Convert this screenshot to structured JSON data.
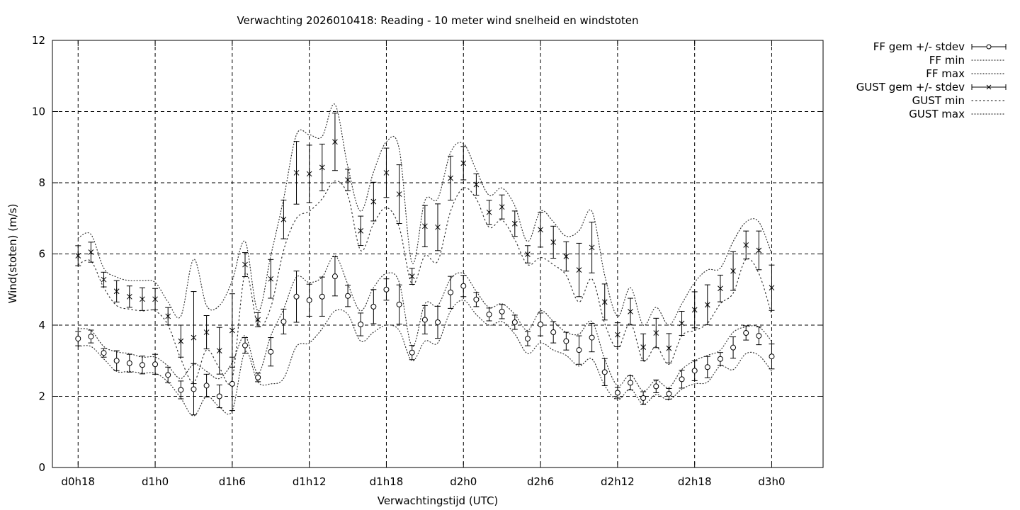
{
  "chart_data": {
    "type": "line",
    "title": "Verwachting 2026010418: Reading - 10 meter wind snelheid en windstoten",
    "xlabel": "Verwachtingstijd (UTC)",
    "ylabel": "Wind(stoten) (m/s)",
    "ylim": [
      0,
      12
    ],
    "xlim_hours": [
      16,
      76
    ],
    "grid": true,
    "legend_position": "outside-top-right",
    "x_ticks": [
      {
        "label": "d0h18",
        "h": 18
      },
      {
        "label": "d1h0",
        "h": 24
      },
      {
        "label": "d1h6",
        "h": 30
      },
      {
        "label": "d1h12",
        "h": 36
      },
      {
        "label": "d1h18",
        "h": 42
      },
      {
        "label": "d2h0",
        "h": 48
      },
      {
        "label": "d2h6",
        "h": 54
      },
      {
        "label": "d2h12",
        "h": 60
      },
      {
        "label": "d2h18",
        "h": 66
      },
      {
        "label": "d3h0",
        "h": 72
      }
    ],
    "y_ticks": [
      0,
      2,
      4,
      6,
      8,
      10,
      12
    ],
    "x_hours": [
      18,
      19,
      20,
      21,
      22,
      23,
      24,
      25,
      26,
      27,
      28,
      29,
      30,
      31,
      32,
      33,
      34,
      35,
      36,
      37,
      38,
      39,
      40,
      41,
      42,
      43,
      44,
      45,
      46,
      47,
      48,
      49,
      50,
      51,
      52,
      53,
      54,
      55,
      56,
      57,
      58,
      59,
      60,
      61,
      62,
      63,
      64,
      65,
      66,
      67,
      68,
      69,
      70,
      71,
      72
    ],
    "series": [
      {
        "name": "FF gem +/- stdev",
        "mean": [
          3.62,
          3.68,
          3.22,
          3.0,
          2.93,
          2.88,
          2.9,
          2.6,
          2.18,
          2.2,
          2.3,
          2.0,
          2.35,
          3.43,
          2.53,
          3.25,
          4.1,
          4.8,
          4.7,
          4.8,
          5.37,
          4.82,
          4.02,
          4.52,
          5.0,
          4.58,
          3.23,
          4.15,
          4.08,
          4.92,
          5.1,
          4.72,
          4.3,
          4.38,
          4.08,
          3.62,
          4.02,
          3.8,
          3.55,
          3.3,
          3.65,
          2.68,
          2.1,
          2.38,
          1.95,
          2.28,
          2.07,
          2.48,
          2.72,
          2.82,
          3.05,
          3.37,
          3.78,
          3.7,
          3.12
        ],
        "stdev": [
          0.2,
          0.18,
          0.12,
          0.28,
          0.25,
          0.25,
          0.28,
          0.22,
          0.25,
          0.72,
          0.32,
          0.32,
          0.75,
          0.22,
          0.12,
          0.4,
          0.35,
          0.72,
          0.45,
          0.55,
          0.55,
          0.3,
          0.32,
          0.48,
          0.3,
          0.55,
          0.2,
          0.4,
          0.45,
          0.45,
          0.3,
          0.2,
          0.18,
          0.2,
          0.2,
          0.2,
          0.32,
          0.3,
          0.25,
          0.4,
          0.4,
          0.38,
          0.15,
          0.2,
          0.18,
          0.18,
          0.15,
          0.25,
          0.28,
          0.3,
          0.18,
          0.3,
          0.2,
          0.25,
          0.35
        ]
      },
      {
        "name": "FF min",
        "values": [
          3.4,
          3.4,
          3.05,
          2.7,
          2.7,
          2.65,
          2.65,
          2.4,
          1.95,
          1.45,
          2.0,
          1.7,
          1.6,
          3.25,
          2.4,
          2.35,
          2.5,
          3.4,
          3.5,
          3.9,
          4.4,
          4.3,
          3.55,
          3.8,
          4.0,
          3.85,
          3.0,
          3.55,
          3.5,
          4.4,
          4.7,
          4.3,
          4.0,
          4.1,
          3.75,
          3.2,
          3.5,
          3.3,
          3.15,
          2.85,
          3.05,
          2.3,
          1.9,
          2.2,
          1.78,
          2.05,
          1.9,
          2.2,
          2.35,
          2.4,
          2.85,
          2.75,
          3.2,
          3.15,
          2.7
        ]
      },
      {
        "name": "FF max",
        "values": [
          3.9,
          3.85,
          3.4,
          3.25,
          3.2,
          3.1,
          3.1,
          2.85,
          2.5,
          2.9,
          2.7,
          2.5,
          2.95,
          3.7,
          2.65,
          3.7,
          4.45,
          5.35,
          5.2,
          5.35,
          5.95,
          5.15,
          4.4,
          5.05,
          5.45,
          5.2,
          3.4,
          4.6,
          4.55,
          5.3,
          5.45,
          4.95,
          4.5,
          4.6,
          4.3,
          3.85,
          4.4,
          4.1,
          3.8,
          3.75,
          4.1,
          3.05,
          2.3,
          2.6,
          2.15,
          2.45,
          2.25,
          2.75,
          3.0,
          3.15,
          3.3,
          3.8,
          3.95,
          3.95,
          3.55
        ]
      },
      {
        "name": "GUST gem +/- stdev",
        "mean": [
          5.95,
          6.05,
          5.28,
          4.95,
          4.8,
          4.73,
          4.73,
          4.25,
          3.55,
          3.65,
          3.8,
          3.28,
          3.85,
          5.7,
          4.15,
          5.3,
          6.97,
          8.28,
          8.25,
          8.43,
          9.15,
          8.08,
          6.65,
          7.47,
          8.28,
          7.68,
          5.37,
          6.78,
          6.75,
          8.13,
          8.55,
          7.95,
          7.17,
          7.32,
          6.85,
          5.99,
          6.68,
          6.33,
          5.93,
          5.55,
          6.18,
          4.65,
          3.73,
          4.38,
          3.38,
          3.78,
          3.35,
          4.05,
          4.43,
          4.57,
          5.03,
          5.52,
          6.25,
          6.1,
          5.05
        ]
      },
      {
        "name": "GUST min",
        "values": [
          5.7,
          5.8,
          5.05,
          4.55,
          4.45,
          4.4,
          4.4,
          4.0,
          3.05,
          2.4,
          3.3,
          2.8,
          2.5,
          5.45,
          4.0,
          4.5,
          6.1,
          7.0,
          7.2,
          7.55,
          8.05,
          7.65,
          6.1,
          6.85,
          7.3,
          6.75,
          5.15,
          5.95,
          5.8,
          7.2,
          7.85,
          7.55,
          6.75,
          6.95,
          6.4,
          5.7,
          5.9,
          5.7,
          5.4,
          4.65,
          5.3,
          4.05,
          3.35,
          4.05,
          3.0,
          3.4,
          2.9,
          3.7,
          3.85,
          4.05,
          4.6,
          4.9,
          5.85,
          5.45,
          4.3
        ]
      },
      {
        "name": "GUST max",
        "values": [
          6.45,
          6.55,
          5.6,
          5.35,
          5.25,
          5.25,
          5.2,
          4.65,
          4.25,
          5.85,
          4.55,
          4.55,
          5.25,
          6.35,
          4.4,
          5.95,
          7.55,
          9.35,
          9.35,
          9.3,
          10.2,
          8.45,
          7.2,
          8.3,
          9.15,
          8.95,
          5.75,
          7.5,
          7.55,
          8.85,
          9.1,
          8.35,
          7.65,
          7.85,
          7.35,
          6.35,
          7.2,
          6.9,
          6.5,
          6.65,
          7.2,
          5.4,
          4.25,
          5.05,
          4.0,
          4.5,
          4.0,
          4.6,
          5.2,
          5.55,
          5.6,
          6.35,
          6.9,
          6.9,
          6.0
        ]
      }
    ]
  }
}
